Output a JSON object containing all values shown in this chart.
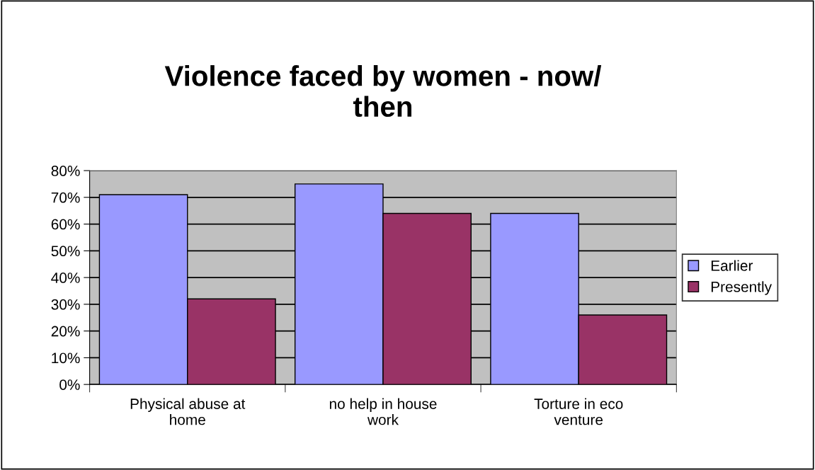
{
  "chart_data": {
    "type": "bar",
    "title": "Violence faced by women - now/\nthen",
    "categories": [
      "Physical abuse at\nhome",
      "no help in house\nwork",
      "Torture in eco\nventure"
    ],
    "series": [
      {
        "name": "Earlier",
        "color": "#9999ff",
        "values": [
          71,
          75,
          64
        ]
      },
      {
        "name": "Presently",
        "color": "#993366",
        "values": [
          32,
          64,
          26
        ]
      }
    ],
    "ylim": [
      0,
      80
    ],
    "yticks": [
      {
        "value": 0,
        "label": "0%"
      },
      {
        "value": 10,
        "label": "10%"
      },
      {
        "value": 20,
        "label": "20%"
      },
      {
        "value": 30,
        "label": "30%"
      },
      {
        "value": 40,
        "label": "40%"
      },
      {
        "value": 50,
        "label": "50%"
      },
      {
        "value": 60,
        "label": "60%"
      },
      {
        "value": 70,
        "label": "70%"
      },
      {
        "value": 80,
        "label": "80%"
      }
    ],
    "grid": "y",
    "legend": "right"
  }
}
